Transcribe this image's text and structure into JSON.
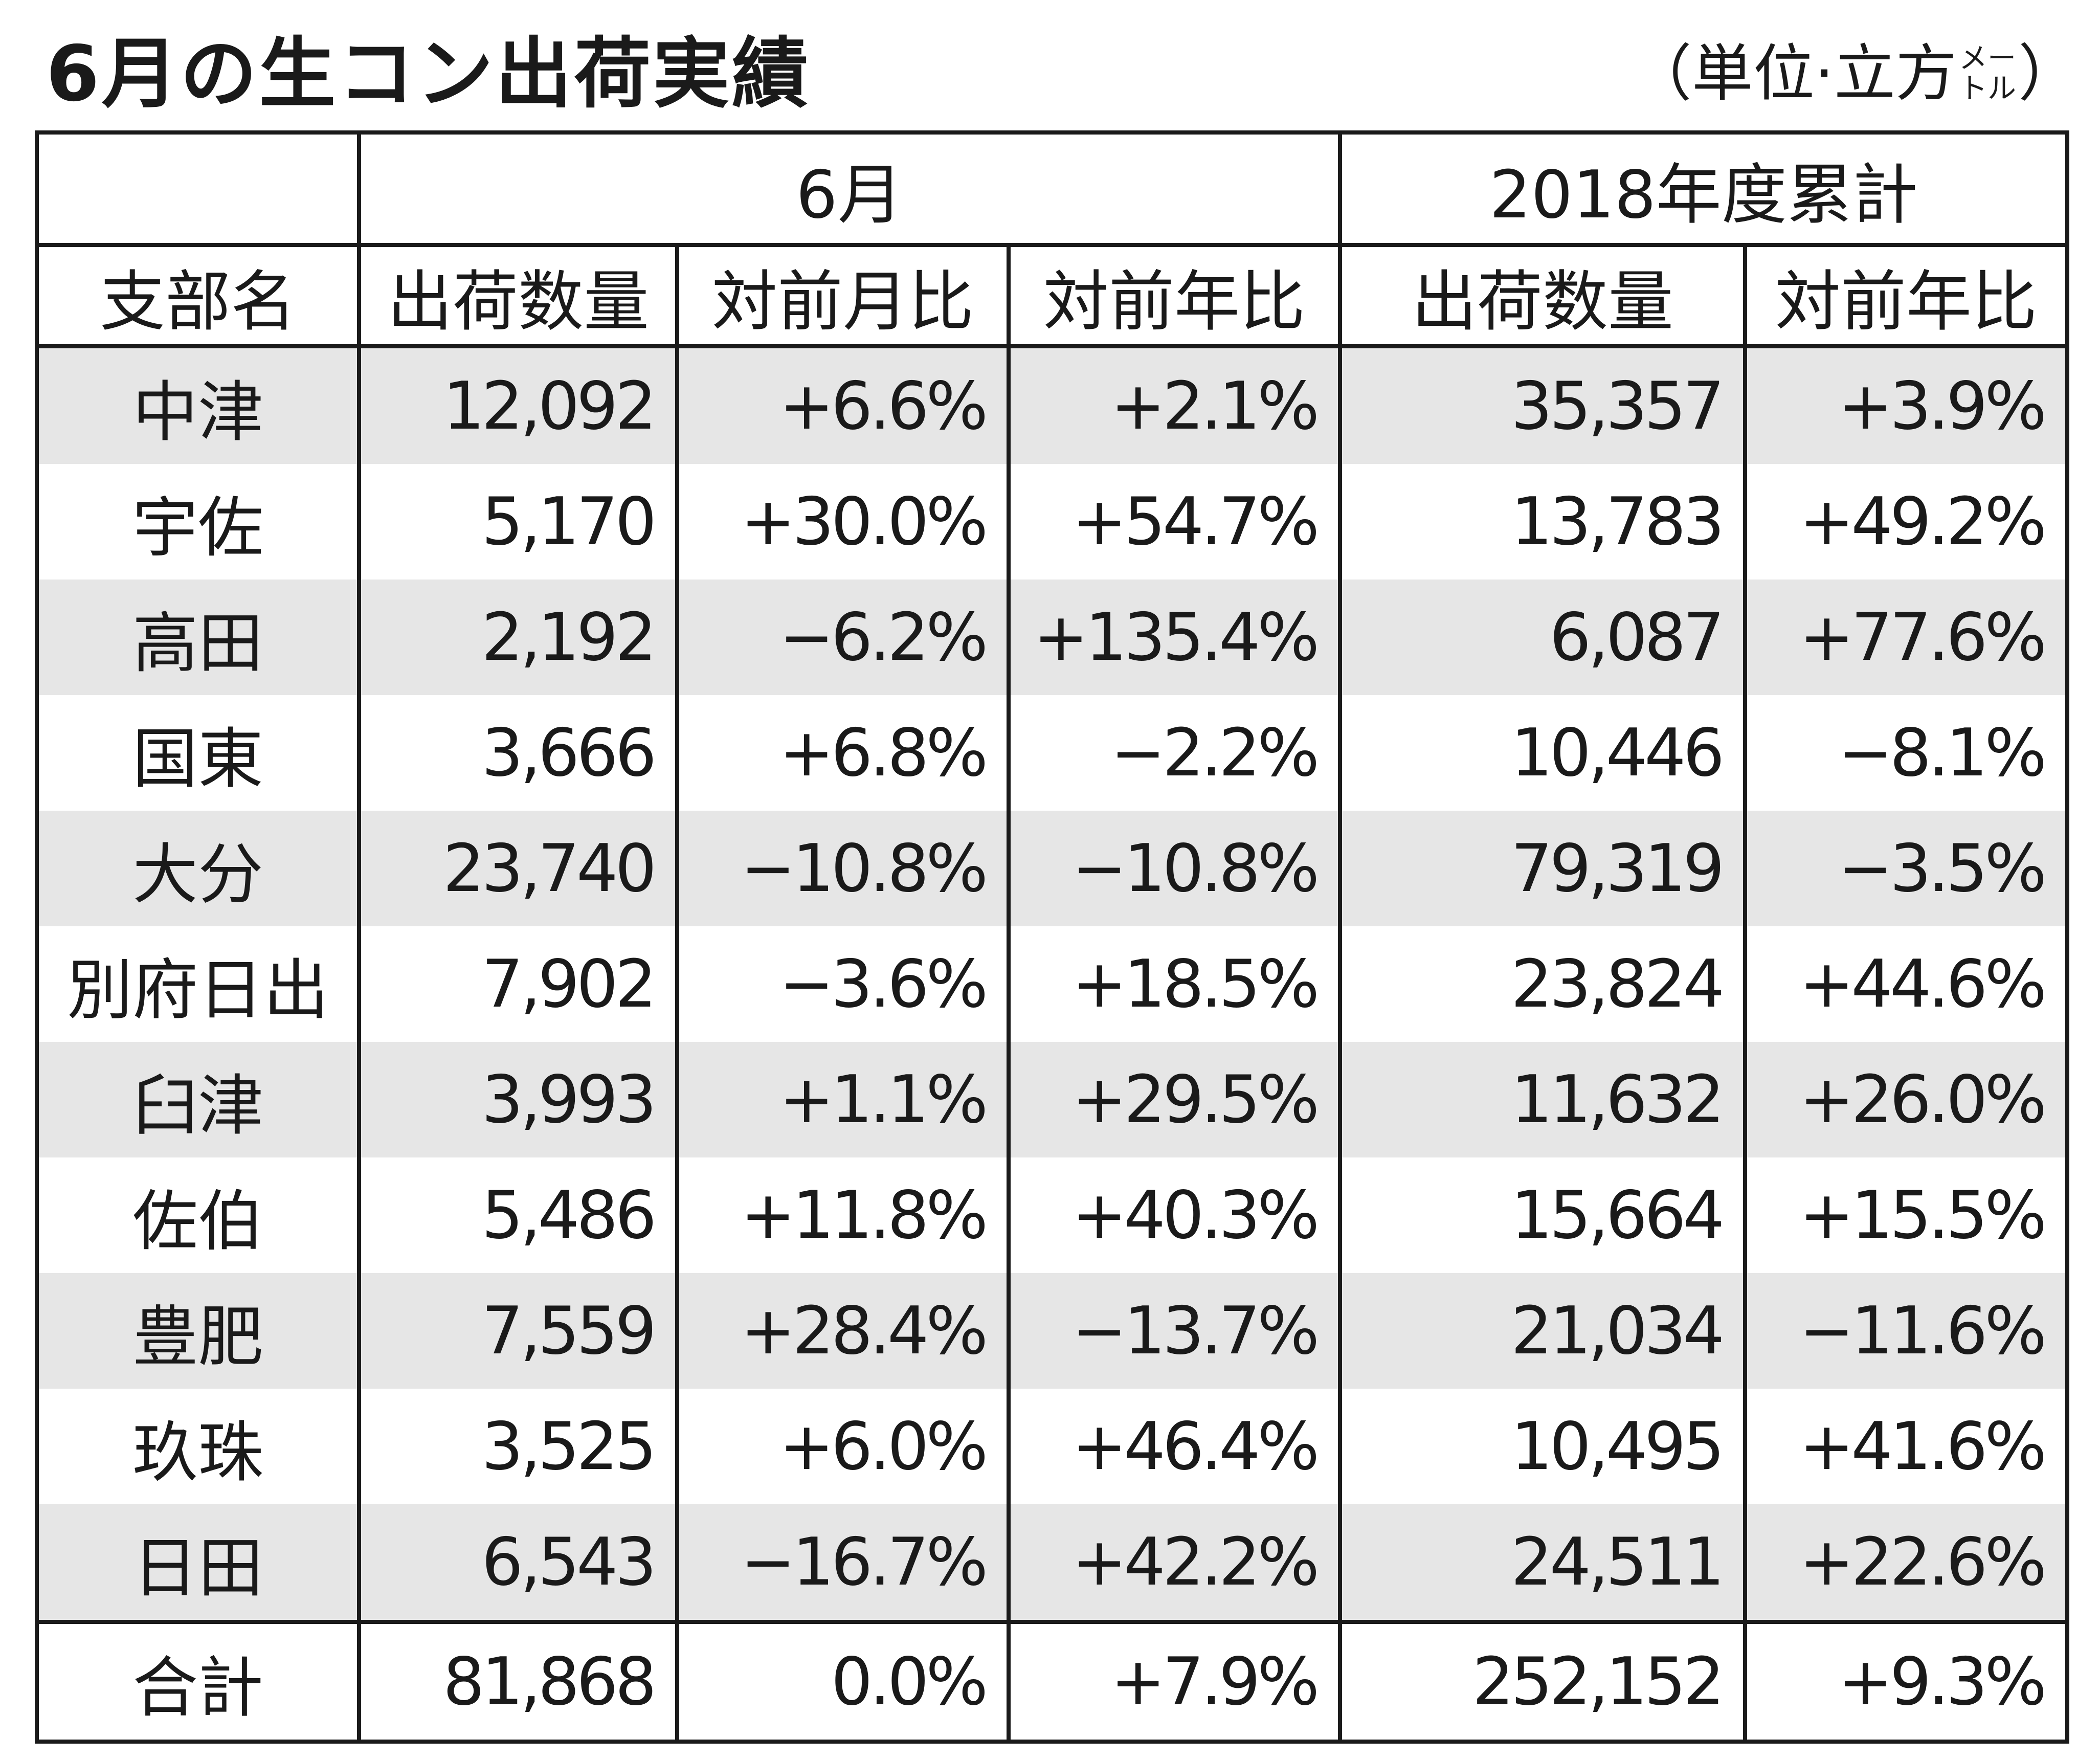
{
  "title": "6月の生コン出荷実績",
  "unit": {
    "prefix": "（単位·立方",
    "meters_top": "メー",
    "meters_bottom": "トル",
    "suffix": "）"
  },
  "header": {
    "group_june": "6月",
    "group_cumulative": "2018年度累計",
    "col_branch": "支部名",
    "col_june_qty": "出荷数量",
    "col_june_mom": "対前月比",
    "col_june_yoy": "対前年比",
    "col_cum_qty": "出荷数量",
    "col_cum_yoy": "対前年比"
  },
  "rows": [
    {
      "branch": "中津",
      "june_qty": "12,092",
      "june_mom": "+6.6%",
      "june_yoy": "+2.1%",
      "cum_qty": "35,357",
      "cum_yoy": "+3.9%"
    },
    {
      "branch": "宇佐",
      "june_qty": "5,170",
      "june_mom": "+30.0%",
      "june_yoy": "+54.7%",
      "cum_qty": "13,783",
      "cum_yoy": "+49.2%"
    },
    {
      "branch": "高田",
      "june_qty": "2,192",
      "june_mom": "−6.2%",
      "june_yoy": "+135.4%",
      "cum_qty": "6,087",
      "cum_yoy": "+77.6%"
    },
    {
      "branch": "国東",
      "june_qty": "3,666",
      "june_mom": "+6.8%",
      "june_yoy": "−2.2%",
      "cum_qty": "10,446",
      "cum_yoy": "−8.1%"
    },
    {
      "branch": "大分",
      "june_qty": "23,740",
      "june_mom": "−10.8%",
      "june_yoy": "−10.8%",
      "cum_qty": "79,319",
      "cum_yoy": "−3.5%"
    },
    {
      "branch": "別府日出",
      "june_qty": "7,902",
      "june_mom": "−3.6%",
      "june_yoy": "+18.5%",
      "cum_qty": "23,824",
      "cum_yoy": "+44.6%"
    },
    {
      "branch": "臼津",
      "june_qty": "3,993",
      "june_mom": "+1.1%",
      "june_yoy": "+29.5%",
      "cum_qty": "11,632",
      "cum_yoy": "+26.0%"
    },
    {
      "branch": "佐伯",
      "june_qty": "5,486",
      "june_mom": "+11.8%",
      "june_yoy": "+40.3%",
      "cum_qty": "15,664",
      "cum_yoy": "+15.5%"
    },
    {
      "branch": "豊肥",
      "june_qty": "7,559",
      "june_mom": "+28.4%",
      "june_yoy": "−13.7%",
      "cum_qty": "21,034",
      "cum_yoy": "−11.6%"
    },
    {
      "branch": "玖珠",
      "june_qty": "3,525",
      "june_mom": "+6.0%",
      "june_yoy": "+46.4%",
      "cum_qty": "10,495",
      "cum_yoy": "+41.6%"
    },
    {
      "branch": "日田",
      "june_qty": "6,543",
      "june_mom": "−16.7%",
      "june_yoy": "+42.2%",
      "cum_qty": "24,511",
      "cum_yoy": "+22.6%"
    }
  ],
  "total": {
    "branch": "合計",
    "june_qty": "81,868",
    "june_mom": "0.0%",
    "june_yoy": "+7.9%",
    "cum_qty": "252,152",
    "cum_yoy": "+9.3%"
  },
  "colors": {
    "row_shade": "#e6e6e6",
    "border": "#1a1a1a",
    "text": "#1a1a1a"
  }
}
